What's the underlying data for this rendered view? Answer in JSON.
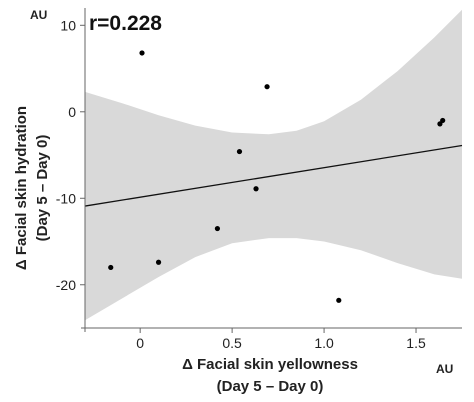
{
  "chart_data": {
    "type": "scatter",
    "annotation": "r=0.228",
    "x_title_lines": [
      "Δ Facial skin yellowness",
      "(Day 5 – Day 0)"
    ],
    "y_title_lines": [
      "Δ Facial skin hydration",
      "(Day 5 – Day 0)"
    ],
    "x_unit": "AU",
    "y_unit": "AU",
    "xlim": [
      -0.3,
      1.75
    ],
    "ylim": [
      -25,
      12
    ],
    "x_ticks": [
      0,
      0.5,
      1.0,
      1.5
    ],
    "x_tick_labels": [
      "0",
      "0.5",
      "1.0",
      "1.5"
    ],
    "y_ticks": [
      10,
      0,
      -10,
      -20
    ],
    "y_tick_labels": [
      "10",
      "0",
      "-10",
      "-20"
    ],
    "grid": false,
    "points": [
      {
        "x": -0.16,
        "y": -18.0
      },
      {
        "x": 0.01,
        "y": 6.8
      },
      {
        "x": 0.1,
        "y": -17.4
      },
      {
        "x": 0.42,
        "y": -13.5
      },
      {
        "x": 0.54,
        "y": -4.6
      },
      {
        "x": 0.63,
        "y": -8.9
      },
      {
        "x": 0.69,
        "y": 2.9
      },
      {
        "x": 1.08,
        "y": -21.8
      },
      {
        "x": 1.63,
        "y": -1.4
      },
      {
        "x": 1.645,
        "y": -1.0
      }
    ],
    "regression_line": [
      {
        "x": -0.3,
        "y": -10.9
      },
      {
        "x": 1.75,
        "y": -3.9
      }
    ],
    "confidence_band": {
      "x": [
        -0.3,
        -0.1,
        0.1,
        0.3,
        0.5,
        0.7,
        0.85,
        1.0,
        1.2,
        1.4,
        1.6,
        1.75
      ],
      "upper": [
        2.3,
        1.0,
        -0.4,
        -1.6,
        -2.4,
        -2.6,
        -2.2,
        -1.1,
        1.4,
        4.7,
        8.6,
        11.8
      ],
      "lower": [
        -24.1,
        -21.6,
        -19.1,
        -16.8,
        -15.2,
        -14.6,
        -14.6,
        -15.0,
        -16.0,
        -17.5,
        -18.8,
        -19.3
      ]
    },
    "colors": {
      "band": "#d9d9d9",
      "line": "#111111",
      "points": "#000000",
      "axis": "#666666"
    }
  }
}
